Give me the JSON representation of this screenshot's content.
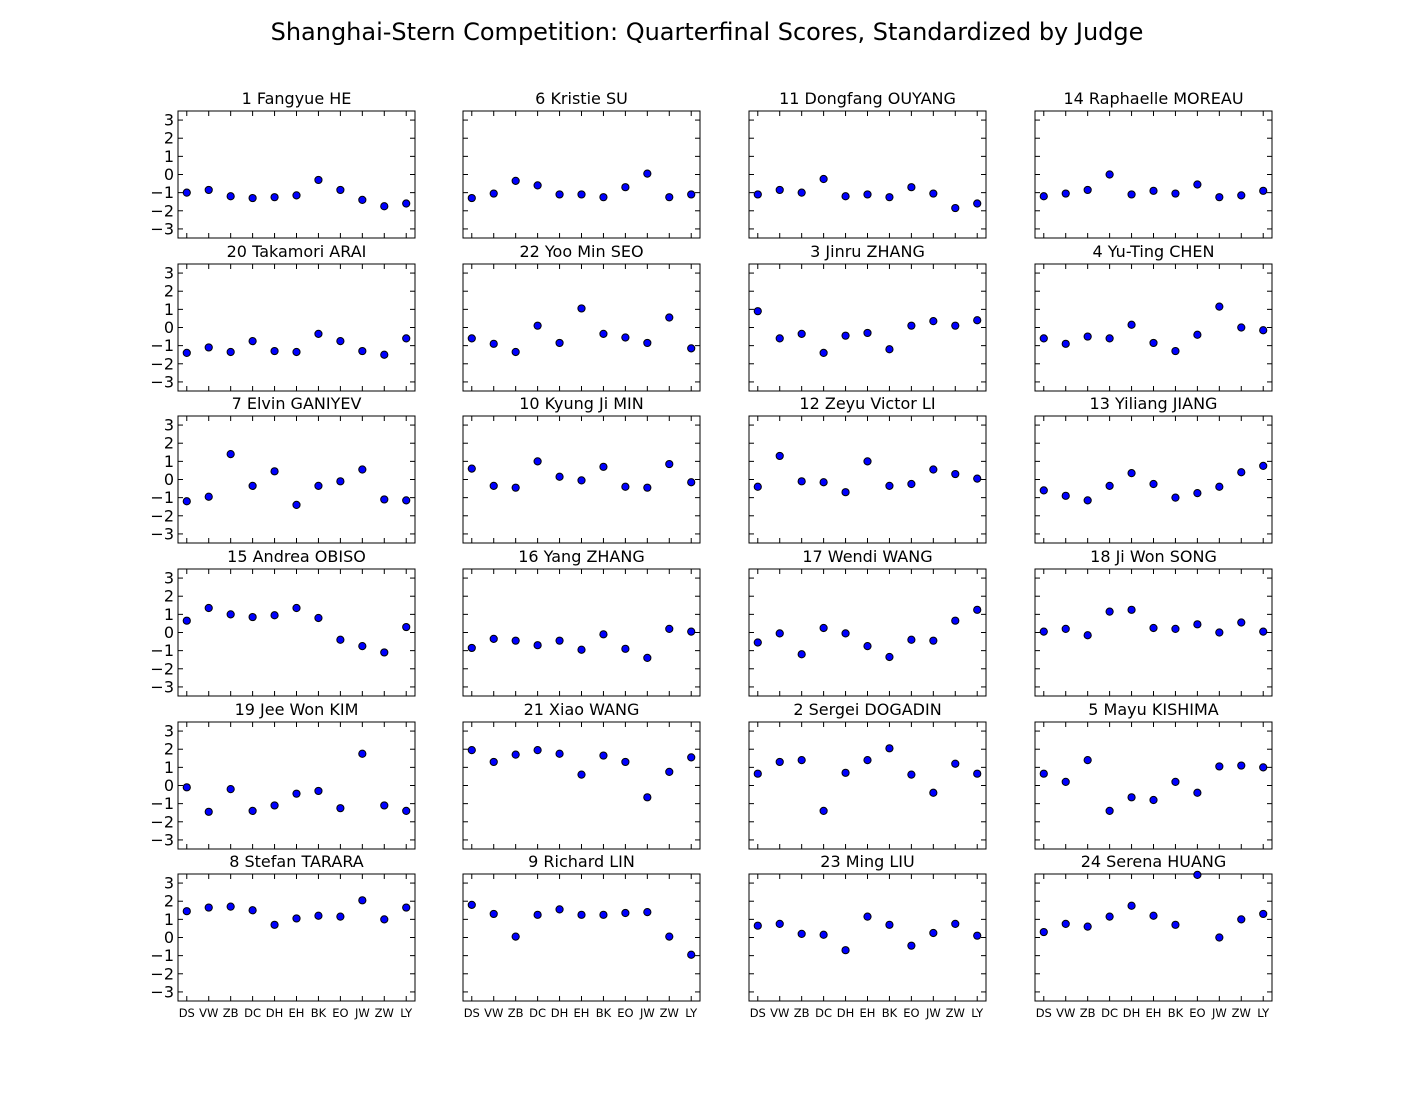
{
  "chart_data": {
    "type": "scatter",
    "title": "Shanghai-Stern Competition: Quarterfinal Scores, Standardized by Judge",
    "xlabel": "",
    "ylabel": "",
    "categories": [
      "DS",
      "VW",
      "ZB",
      "DC",
      "DH",
      "EH",
      "BK",
      "EO",
      "JW",
      "ZW",
      "LY"
    ],
    "ylim": [
      -3.5,
      3.5
    ],
    "yticks": [
      "3",
      "2",
      "1",
      "0",
      "−1",
      "−2",
      "−3"
    ],
    "ytick_values": [
      3,
      2,
      1,
      0,
      -1,
      -2,
      -3
    ],
    "grid": false,
    "layout": {
      "rows": 6,
      "cols": 4
    },
    "panels": [
      {
        "title": "1 Fangyue HE",
        "values": [
          -1.0,
          -0.85,
          -1.2,
          -1.3,
          -1.25,
          -1.15,
          -0.3,
          -0.85,
          -1.4,
          -1.75,
          -1.6
        ]
      },
      {
        "title": "6 Kristie SU",
        "values": [
          -1.3,
          -1.05,
          -0.35,
          -0.6,
          -1.1,
          -1.1,
          -1.25,
          -0.7,
          0.05,
          -1.25,
          -1.1
        ]
      },
      {
        "title": "11 Dongfang OUYANG",
        "values": [
          -1.1,
          -0.85,
          -1.0,
          -0.25,
          -1.2,
          -1.1,
          -1.25,
          -0.7,
          -1.05,
          -1.85,
          -1.6
        ]
      },
      {
        "title": "14 Raphaelle MOREAU",
        "values": [
          -1.2,
          -1.05,
          -0.85,
          0.0,
          -1.1,
          -0.9,
          -1.05,
          -0.55,
          -1.25,
          -1.15,
          -0.9
        ]
      },
      {
        "title": "20 Takamori ARAI",
        "values": [
          -1.4,
          -1.1,
          -1.35,
          -0.75,
          -1.3,
          -1.35,
          -0.35,
          -0.75,
          -1.3,
          -1.5,
          -0.6
        ]
      },
      {
        "title": "22 Yoo Min SEO",
        "values": [
          -0.6,
          -0.9,
          -1.35,
          0.1,
          -0.85,
          1.05,
          -0.35,
          -0.55,
          -0.85,
          0.55,
          -1.15
        ]
      },
      {
        "title": "3 Jinru ZHANG",
        "values": [
          0.9,
          -0.6,
          -0.35,
          -1.4,
          -0.45,
          -0.3,
          -1.2,
          0.1,
          0.35,
          0.1,
          0.4
        ]
      },
      {
        "title": "4 Yu-Ting CHEN",
        "values": [
          -0.6,
          -0.9,
          -0.5,
          -0.6,
          0.15,
          -0.85,
          -1.3,
          -0.4,
          1.15,
          0.0,
          -0.15
        ]
      },
      {
        "title": "7 Elvin GANIYEV",
        "values": [
          -1.2,
          -0.95,
          1.4,
          -0.35,
          0.45,
          -1.4,
          -0.35,
          -0.1,
          0.55,
          -1.1,
          -1.15
        ]
      },
      {
        "title": "10 Kyung Ji MIN",
        "values": [
          0.6,
          -0.35,
          -0.45,
          1.0,
          0.15,
          -0.05,
          0.7,
          -0.4,
          -0.45,
          0.85,
          -0.15
        ]
      },
      {
        "title": "12 Zeyu Victor LI",
        "values": [
          -0.4,
          1.3,
          -0.1,
          -0.15,
          -0.7,
          1.0,
          -0.35,
          -0.25,
          0.55,
          0.3,
          0.05
        ]
      },
      {
        "title": "13 Yiliang JIANG",
        "values": [
          -0.6,
          -0.9,
          -1.15,
          -0.35,
          0.35,
          -0.25,
          -1.0,
          -0.75,
          -0.4,
          0.4,
          0.75
        ]
      },
      {
        "title": "15 Andrea OBISO",
        "values": [
          0.65,
          1.35,
          1.0,
          0.85,
          0.95,
          1.35,
          0.8,
          -0.4,
          -0.75,
          -1.1,
          0.3
        ]
      },
      {
        "title": "16 Yang ZHANG",
        "values": [
          -0.85,
          -0.35,
          -0.45,
          -0.7,
          -0.45,
          -0.95,
          -0.1,
          -0.9,
          -1.4,
          0.2,
          0.05
        ]
      },
      {
        "title": "17 Wendi WANG",
        "values": [
          -0.55,
          -0.05,
          -1.2,
          0.25,
          -0.05,
          -0.75,
          -1.35,
          -0.4,
          -0.45,
          0.65,
          1.25
        ]
      },
      {
        "title": "18 Ji Won SONG",
        "values": [
          0.05,
          0.2,
          -0.15,
          1.15,
          1.25,
          0.25,
          0.2,
          0.45,
          0.0,
          0.55,
          0.05
        ]
      },
      {
        "title": "19 Jee Won KIM",
        "values": [
          -0.1,
          -1.45,
          -0.2,
          -1.4,
          -1.1,
          -0.45,
          -0.3,
          -1.25,
          1.75,
          -1.1,
          -1.4
        ]
      },
      {
        "title": "21 Xiao WANG",
        "values": [
          1.95,
          1.3,
          1.7,
          1.95,
          1.75,
          0.6,
          1.65,
          1.3,
          -0.65,
          0.75,
          1.55
        ]
      },
      {
        "title": "2 Sergei DOGADIN",
        "values": [
          0.65,
          1.3,
          1.4,
          -1.4,
          0.7,
          1.4,
          2.05,
          0.6,
          -0.4,
          1.2,
          0.65
        ]
      },
      {
        "title": "5 Mayu KISHIMA",
        "values": [
          0.65,
          0.2,
          1.4,
          -1.4,
          -0.65,
          -0.8,
          0.2,
          -0.4,
          1.05,
          1.1,
          1.0
        ]
      },
      {
        "title": "8 Stefan TARARA",
        "values": [
          1.45,
          1.65,
          1.7,
          1.5,
          0.7,
          1.05,
          1.2,
          1.15,
          2.05,
          1.0,
          1.65
        ]
      },
      {
        "title": "9 Richard LIN",
        "values": [
          1.8,
          1.3,
          0.05,
          1.25,
          1.55,
          1.25,
          1.25,
          1.35,
          1.4,
          0.05,
          -0.95
        ]
      },
      {
        "title": "23 Ming LIU",
        "values": [
          0.65,
          0.75,
          0.2,
          0.15,
          -0.7,
          1.15,
          0.7,
          -0.45,
          0.25,
          0.75,
          0.1
        ]
      },
      {
        "title": "24 Serena HUANG",
        "values": [
          0.3,
          0.75,
          0.6,
          1.15,
          1.75,
          1.2,
          0.7,
          3.45,
          0.0,
          1.0,
          1.3
        ]
      }
    ]
  }
}
